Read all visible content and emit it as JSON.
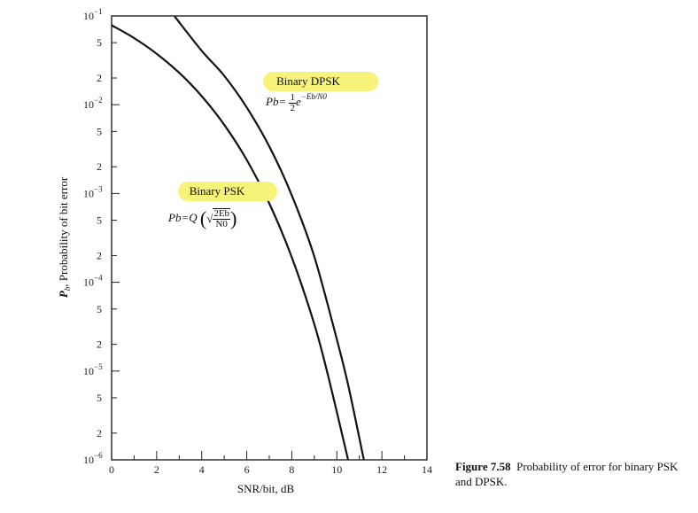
{
  "chart_data": {
    "type": "line",
    "xlabel": "SNR/bit, dB",
    "ylabel": "Pb, Probability of bit error",
    "y_scale": "log",
    "xlim": [
      0,
      14
    ],
    "ylim": [
      1e-06,
      0.1
    ],
    "x_ticks": [
      "0",
      "2",
      "4",
      "6",
      "8",
      "10",
      "12",
      "14"
    ],
    "y_decade_labels": [
      {
        "base": "10",
        "exp": "−1"
      },
      {
        "base": "10",
        "exp": "−2"
      },
      {
        "base": "10",
        "exp": "−3"
      },
      {
        "base": "10",
        "exp": "−4"
      },
      {
        "base": "10",
        "exp": "−5"
      },
      {
        "base": "10",
        "exp": "−6"
      }
    ],
    "y_minor_labels": [
      "5",
      "2"
    ],
    "series": [
      {
        "name": "Binary PSK",
        "x": [
          0,
          1,
          2,
          3,
          4,
          5,
          6,
          7,
          8,
          9,
          9.6,
          10.5
        ],
        "y": [
          0.0786,
          0.0563,
          0.0375,
          0.0229,
          0.0125,
          0.00595,
          0.00239,
          0.000773,
          0.000191,
          3.36e-05,
          9.1e-06,
          1e-06
        ]
      },
      {
        "name": "Binary DPSK",
        "x": [
          2.8,
          4,
          5,
          6,
          7,
          8,
          9,
          10,
          10.5,
          11.2
        ],
        "y": [
          0.0987,
          0.0405,
          0.0212,
          0.00932,
          0.00339,
          0.000954,
          0.000194,
          2.27e-05,
          7e-06,
          1e-06
        ]
      }
    ],
    "annotations": [
      {
        "label": "Binary DPSK",
        "formula_lhs": "Pb=",
        "formula_num": "1",
        "formula_den": "2",
        "formula_rhs": "e",
        "formula_exp": "−Eb/N0"
      },
      {
        "label": "Binary PSK",
        "formula_lhs": "Pb=Q",
        "formula_num": "2Eb",
        "formula_den": "N0"
      }
    ]
  },
  "caption": {
    "figure_number": "Figure 7.58",
    "text": "Probability of error for binary PSK and DPSK."
  }
}
